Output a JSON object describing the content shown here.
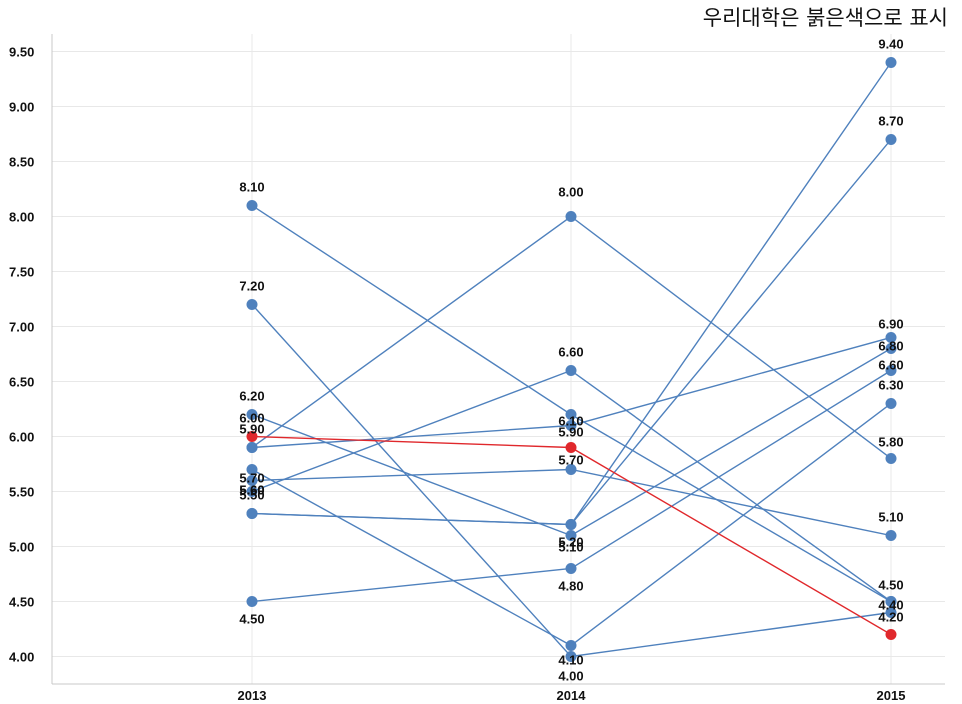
{
  "note": "우리대학은 붉은색으로 표시",
  "colors": {
    "series": "#4f81bd",
    "highlight": "#e0282c",
    "grid": "#e8e8e8",
    "axis": "#c8c8c8"
  },
  "chart_data": {
    "type": "line",
    "x": [
      "2013",
      "2014",
      "2015"
    ],
    "ylim": [
      3.75,
      9.75
    ],
    "yticks": [
      "4.00",
      "4.50",
      "5.00",
      "5.50",
      "6.00",
      "6.50",
      "7.00",
      "7.50",
      "8.00",
      "8.50",
      "9.00",
      "9.50"
    ],
    "grid": true,
    "series": [
      {
        "values": [
          8.1,
          6.2,
          4.5
        ],
        "highlight": false
      },
      {
        "values": [
          7.2,
          4.0,
          4.4
        ],
        "highlight": false
      },
      {
        "values": [
          5.9,
          8.0,
          5.8
        ],
        "highlight": false
      },
      {
        "values": [
          5.6,
          5.7,
          5.1
        ],
        "highlight": false
      },
      {
        "values": [
          5.5,
          6.6,
          4.5
        ],
        "highlight": false
      },
      {
        "values": [
          5.7,
          4.1,
          6.3
        ],
        "highlight": false
      },
      {
        "values": [
          4.5,
          4.8,
          6.6
        ],
        "highlight": false
      },
      {
        "values": [
          5.3,
          5.2,
          9.4
        ],
        "highlight": false
      },
      {
        "values": [
          5.9,
          6.1,
          6.9
        ],
        "highlight": false
      },
      {
        "values": [
          6.2,
          5.1,
          6.8
        ],
        "highlight": false
      },
      {
        "values": [
          5.3,
          5.2,
          8.7
        ],
        "highlight": false
      },
      {
        "values": [
          6.0,
          5.9,
          4.2
        ],
        "highlight": true
      }
    ],
    "labels": [
      [
        "8.10",
        "7.20",
        "6.20",
        "6.00",
        "5.70",
        "5.90",
        "5.60",
        "5.60",
        "5.50",
        "4.50"
      ],
      [
        "8.00",
        "6.60",
        "5.90",
        "6.10",
        "5.70",
        "5.20",
        "5.10",
        "4.80",
        "4.10",
        "4.00"
      ],
      [
        "9.40",
        "8.70",
        "6.90",
        "6.80",
        "6.60",
        "6.30",
        "5.80",
        "5.10",
        "4.50",
        "4.40",
        "4.20"
      ]
    ]
  }
}
